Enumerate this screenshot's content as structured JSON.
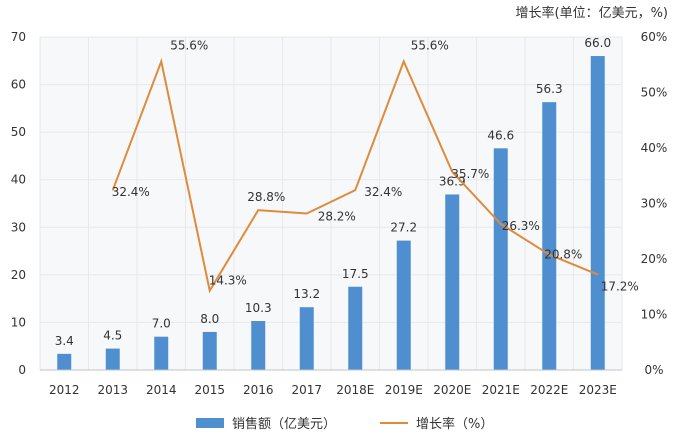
{
  "unit_note": "增长率(单位：亿美元，%)",
  "chart_data": {
    "type": "bar",
    "categories": [
      "2012",
      "2013",
      "2014",
      "2015",
      "2016",
      "2017",
      "2018E",
      "2019E",
      "2020E",
      "2021E",
      "2022E",
      "2023E"
    ],
    "series": [
      {
        "name": "销售额（亿美元）",
        "type": "bar",
        "axis": "left",
        "color": "#4f8fcf",
        "values": [
          3.4,
          4.5,
          7.0,
          8.0,
          10.3,
          13.2,
          17.5,
          27.2,
          36.9,
          46.6,
          56.3,
          66.0
        ],
        "labels": [
          "3.4",
          "4.5",
          "7.0",
          "8.0",
          "10.3",
          "13.2",
          "17.5",
          "27.2",
          "36.9",
          "46.6",
          "56.3",
          "66.0"
        ]
      },
      {
        "name": "增长率（%）",
        "type": "line",
        "axis": "right",
        "color": "#e08a3c",
        "values": [
          null,
          32.4,
          55.6,
          14.3,
          28.8,
          28.2,
          32.4,
          55.6,
          35.7,
          26.3,
          20.8,
          17.2
        ],
        "labels": [
          "",
          "32.4%",
          "55.6%",
          "14.3%",
          "28.8%",
          "28.2%",
          "32.4%",
          "55.6%",
          "35.7%",
          "26.3%",
          "20.8%",
          "17.2%"
        ]
      }
    ],
    "y_left": {
      "range": [
        0,
        70
      ],
      "ticks": [
        "0",
        "10",
        "20",
        "30",
        "40",
        "50",
        "60",
        "70"
      ]
    },
    "y_right": {
      "range": [
        0,
        60
      ],
      "ticks": [
        "0%",
        "10%",
        "20%",
        "30%",
        "40%",
        "50%",
        "60%"
      ]
    },
    "grid": true,
    "legend_position": "bottom",
    "xlabel": "",
    "ylabel": ""
  }
}
